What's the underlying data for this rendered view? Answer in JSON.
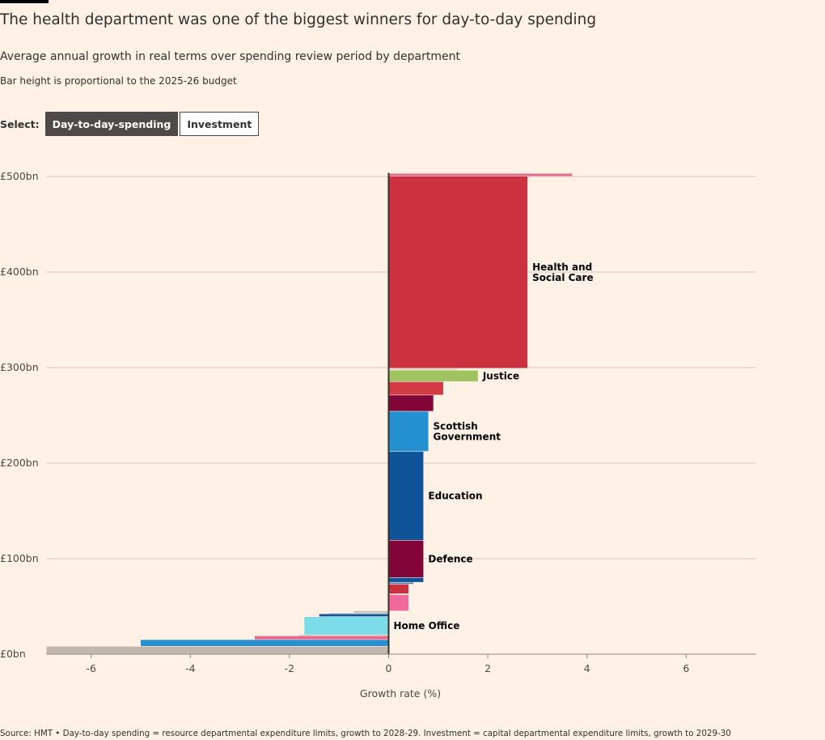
{
  "header": {
    "title": "The health department was one of the biggest winners for day-to-day spending",
    "subtitle": "Average annual growth in real terms over spending review period by department",
    "note": "Bar height is proportional to the 2025-26 budget"
  },
  "controls": {
    "select_label": "Select:",
    "options": [
      "Day-to-day-spending",
      "Investment"
    ],
    "selected": "Day-to-day-spending"
  },
  "footer": {
    "source": "Source: HMT • Day-to-day spending = resource departmental expenditure limits, growth to 2028-29. Investment = capital departmental expenditure limits, growth to 2029-30"
  },
  "colors": {
    "background": "#fff1e5",
    "gridline": "#d4c7bb",
    "axis": "#33302e",
    "active_toggle": "#4f4a47"
  },
  "chart_data": {
    "type": "bar",
    "orientation": "horizontal-stacked-variable-height",
    "xlabel": "Growth rate (%)",
    "ylabel": "",
    "xlim": [
      -6.9,
      7.4
    ],
    "ylim": [
      0,
      510
    ],
    "x_ticks": [
      -6,
      -4,
      -2,
      0,
      2,
      4,
      6
    ],
    "x_tick_labels": [
      "-6",
      "-4",
      "-2",
      "0",
      "2",
      "4",
      "6"
    ],
    "y_ticks": [
      0,
      100,
      200,
      300,
      400,
      500
    ],
    "y_tick_labels": [
      "£0bn",
      "£100bn",
      "£200bn",
      "£300bn",
      "£400bn",
      "£500bn"
    ],
    "grid": true,
    "departments": [
      {
        "label": "",
        "growth": -6.9,
        "budget": 8,
        "color": "#c2b7ae"
      },
      {
        "label": "",
        "growth": -5.0,
        "budget": 7,
        "color": "#2a8fcf"
      },
      {
        "label": "",
        "growth": -2.7,
        "budget": 4,
        "color": "#e5698d"
      },
      {
        "label": "",
        "growth": -1.8,
        "budget": 1,
        "color": "#c9bdb3"
      },
      {
        "label": "Home Office",
        "growth": -1.7,
        "budget": 19,
        "color": "#7bdbe6"
      },
      {
        "label": "",
        "growth": -1.4,
        "budget": 3,
        "color": "#0f5499"
      },
      {
        "label": "",
        "growth": -1.2,
        "budget": 1,
        "color": "#9ec6da"
      },
      {
        "label": "",
        "growth": -0.7,
        "budget": 2,
        "color": "#c2b7ae"
      },
      {
        "label": "",
        "growth": 0.4,
        "budget": 17,
        "color": "#f0699a"
      },
      {
        "label": "",
        "growth": 0.2,
        "budget": 1,
        "color": "#f4b8c8"
      },
      {
        "label": "",
        "growth": 0.4,
        "budget": 10,
        "color": "#cc3140"
      },
      {
        "label": "",
        "growth": 0.5,
        "budget": 2,
        "color": "#5a7ea8"
      },
      {
        "label": "",
        "growth": 0.7,
        "budget": 5,
        "color": "#0f5499"
      },
      {
        "label": "Defence",
        "growth": 0.7,
        "budget": 39,
        "color": "#810536"
      },
      {
        "label": "Education",
        "growth": 0.7,
        "budget": 93,
        "color": "#0f5499"
      },
      {
        "label": "Scottish Government",
        "growth": 0.8,
        "budget": 42,
        "color": "#2391d2"
      },
      {
        "label": "",
        "growth": 0.9,
        "budget": 17,
        "color": "#810536"
      },
      {
        "label": "",
        "growth": 1.1,
        "budget": 14,
        "color": "#d23b46"
      },
      {
        "label": "Justice",
        "growth": 1.8,
        "budget": 12,
        "color": "#9fc45f"
      },
      {
        "label": "",
        "growth": 1.4,
        "budget": 2,
        "color": "#d7d8c4"
      },
      {
        "label": "Health and Social Care",
        "growth": 2.8,
        "budget": 201,
        "color": "#cc3140"
      },
      {
        "label": "",
        "growth": 3.7,
        "budget": 3,
        "color": "#e5698d"
      }
    ]
  }
}
